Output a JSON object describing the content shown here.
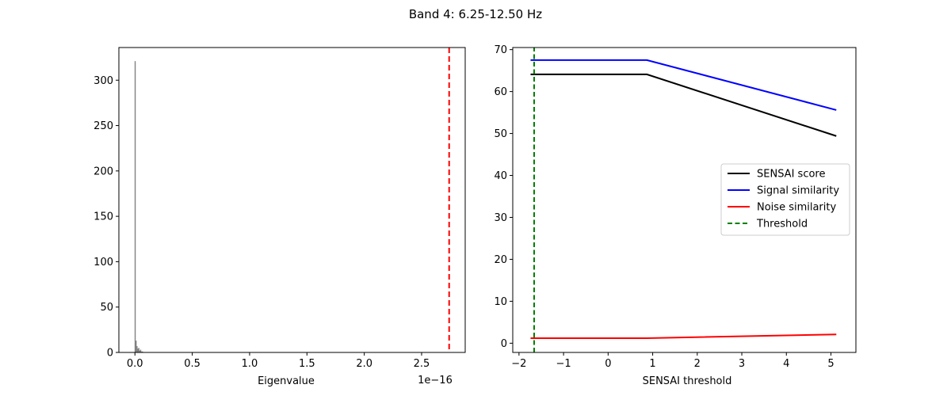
{
  "figure": {
    "suptitle": "Band 4: 6.25-12.50 Hz"
  },
  "chart_data": [
    {
      "type": "histogram",
      "xlabel": "Eigenvalue",
      "x_offset_label": "1e−16",
      "x_scale": 1e-16,
      "xlim": [
        -0.14,
        2.88
      ],
      "ylim": [
        0,
        336
      ],
      "xticks": [
        0.0,
        0.5,
        1.0,
        1.5,
        2.0,
        2.5
      ],
      "xtick_labels": [
        "0.0",
        "0.5",
        "1.0",
        "1.5",
        "2.0",
        "2.5"
      ],
      "yticks": [
        0,
        50,
        100,
        150,
        200,
        250,
        300
      ],
      "ytick_labels": [
        "0",
        "50",
        "100",
        "150",
        "200",
        "250",
        "300"
      ],
      "bar_color": "#808080",
      "bins": [
        {
          "x": 0.002,
          "count": 321
        },
        {
          "x": 0.01,
          "count": 13
        },
        {
          "x": 0.018,
          "count": 7
        },
        {
          "x": 0.026,
          "count": 4
        },
        {
          "x": 0.034,
          "count": 5
        },
        {
          "x": 0.042,
          "count": 2
        },
        {
          "x": 0.05,
          "count": 3
        },
        {
          "x": 0.058,
          "count": 1
        },
        {
          "x": 0.066,
          "count": 1
        }
      ],
      "threshold_line": {
        "x": 2.74,
        "color": "#ff0000",
        "style": "dashed"
      }
    },
    {
      "type": "line",
      "xlabel": "SENSAI threshold",
      "xlim": [
        -2.14,
        5.56
      ],
      "ylim": [
        -2.2,
        70.5
      ],
      "xticks": [
        -2,
        -1,
        0,
        1,
        2,
        3,
        4,
        5
      ],
      "xtick_labels": [
        "−2",
        "−1",
        "0",
        "1",
        "2",
        "3",
        "4",
        "5"
      ],
      "yticks": [
        0,
        10,
        20,
        30,
        40,
        50,
        60,
        70
      ],
      "ytick_labels": [
        "0",
        "10",
        "20",
        "30",
        "40",
        "50",
        "60",
        "70"
      ],
      "legend_position": "center-right",
      "series": [
        {
          "name": "SENSAI score",
          "color": "#000000",
          "style": "solid",
          "x": [
            -1.74,
            0.87,
            5.12
          ],
          "y": [
            64.1,
            64.1,
            49.4
          ]
        },
        {
          "name": "Signal similarity",
          "color": "#0000ff",
          "style": "solid",
          "x": [
            -1.74,
            0.87,
            5.12
          ],
          "y": [
            67.5,
            67.5,
            55.6
          ]
        },
        {
          "name": "Noise similarity",
          "color": "#ff0000",
          "style": "solid",
          "x": [
            -1.74,
            0.87,
            5.12
          ],
          "y": [
            1.2,
            1.2,
            2.1
          ]
        },
        {
          "name": "Threshold",
          "color": "#008000",
          "style": "dashed",
          "x": [
            -1.66,
            -1.66
          ],
          "y": [
            -2.2,
            70.5
          ]
        }
      ]
    }
  ]
}
